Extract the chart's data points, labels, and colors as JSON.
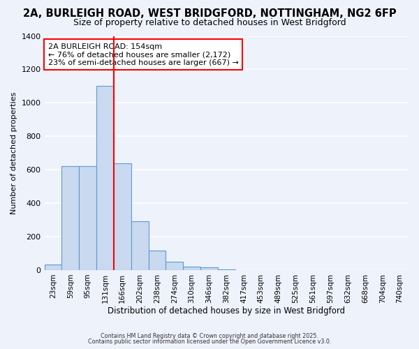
{
  "title": "2A, BURLEIGH ROAD, WEST BRIDGFORD, NOTTINGHAM, NG2 6FP",
  "subtitle": "Size of property relative to detached houses in West Bridgford",
  "bar_labels": [
    "23sqm",
    "59sqm",
    "95sqm",
    "131sqm",
    "166sqm",
    "202sqm",
    "238sqm",
    "274sqm",
    "310sqm",
    "346sqm",
    "382sqm",
    "417sqm",
    "453sqm",
    "489sqm",
    "525sqm",
    "561sqm",
    "597sqm",
    "632sqm",
    "668sqm",
    "704sqm",
    "740sqm"
  ],
  "bar_values": [
    35,
    620,
    620,
    1100,
    640,
    290,
    115,
    50,
    20,
    15,
    5,
    0,
    0,
    0,
    0,
    0,
    0,
    0,
    0,
    0,
    0
  ],
  "bar_color": "#c9d9f0",
  "bar_edge_color": "#5b9bd5",
  "ylim": [
    0,
    1400
  ],
  "ylabel": "Number of detached properties",
  "xlabel": "Distribution of detached houses by size in West Bridgford",
  "vline_x_idx": 3.5,
  "vline_color": "red",
  "annotation_title": "2A BURLEIGH ROAD: 154sqm",
  "annotation_line1": "← 76% of detached houses are smaller (2,172)",
  "annotation_line2": "23% of semi-detached houses are larger (667) →",
  "annotation_box_color": "red",
  "annotation_bg": "white",
  "footnote1": "Contains HM Land Registry data © Crown copyright and database right 2025.",
  "footnote2": "Contains public sector information licensed under the Open Government Licence v3.0.",
  "background_color": "#eef2fb",
  "grid_color": "#ffffff",
  "title_fontsize": 10.5,
  "subtitle_fontsize": 9
}
